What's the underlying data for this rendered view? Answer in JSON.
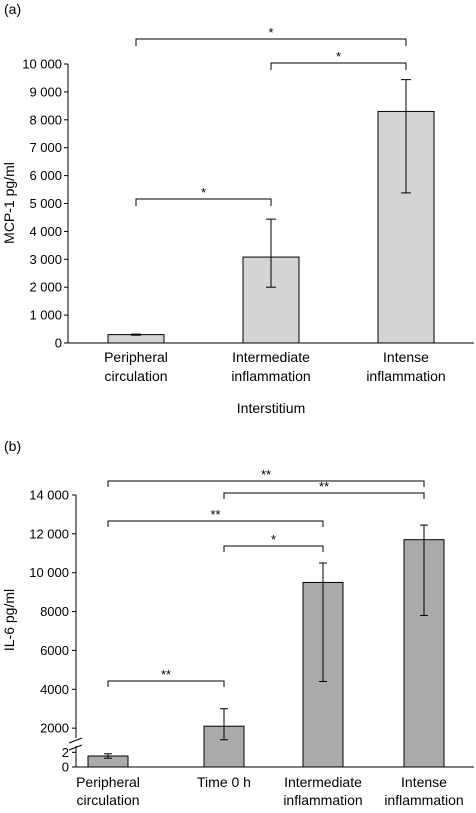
{
  "chart_data": [
    {
      "type": "bar",
      "panel_label": "(a)",
      "ylabel": "MCP-1 pg/ml",
      "xlabel": "Interstitium",
      "ylim": [
        0,
        10000
      ],
      "yticks": [
        0,
        1000,
        2000,
        3000,
        4000,
        5000,
        6000,
        7000,
        8000,
        9000,
        10000
      ],
      "ytick_labels": [
        "0",
        "1 000",
        "2 000",
        "3 000",
        "4 000",
        "5 000",
        "6 000",
        "7 000",
        "8 000",
        "9 000",
        "10 000"
      ],
      "categories": [
        [
          "Peripheral",
          "circulation"
        ],
        [
          "Intermediate",
          "inflammation"
        ],
        [
          "Intense",
          "inflammation"
        ]
      ],
      "values": [
        300,
        3080,
        8300
      ],
      "err_low": [
        280,
        2000,
        5380
      ],
      "err_high": [
        320,
        4440,
        9440
      ],
      "bar_color": "#d4d4d4",
      "significance": [
        {
          "from": 0,
          "to": 1,
          "label": "*"
        },
        {
          "from": 1,
          "to": 2,
          "label": "*"
        },
        {
          "from": 0,
          "to": 2,
          "label": "*"
        }
      ]
    },
    {
      "type": "bar",
      "panel_label": "(b)",
      "ylabel": "IL-6 pg/ml",
      "xlabel": "",
      "axis_break": true,
      "lower_range": [
        0,
        3
      ],
      "upper_range": [
        1000,
        14000
      ],
      "lower_ticks": [
        0,
        2
      ],
      "upper_ticks": [
        2000,
        4000,
        6000,
        8000,
        10000,
        12000,
        14000
      ],
      "upper_tick_labels": [
        "2000",
        "4000",
        "6000",
        "8000",
        "10 000",
        "12 000",
        "14 000"
      ],
      "categories": [
        [
          "Peripheral",
          "circulation"
        ],
        [
          "Time 0 h"
        ],
        [
          "Intermediate",
          "inflammation"
        ],
        [
          "Intense",
          "inflammation"
        ]
      ],
      "values": [
        1.5,
        2100,
        9500,
        11700
      ],
      "err_low": [
        1.2,
        1400,
        4400,
        7800
      ],
      "err_high": [
        1.8,
        3000,
        10500,
        12450
      ],
      "bar_color": "#aaaaaa",
      "significance": [
        {
          "from": 0,
          "to": 1,
          "label": "**"
        },
        {
          "from": 1,
          "to": 2,
          "label": "*"
        },
        {
          "from": 0,
          "to": 2,
          "label": "**"
        },
        {
          "from": 1,
          "to": 3,
          "label": "**"
        },
        {
          "from": 0,
          "to": 3,
          "label": "**"
        }
      ]
    }
  ]
}
